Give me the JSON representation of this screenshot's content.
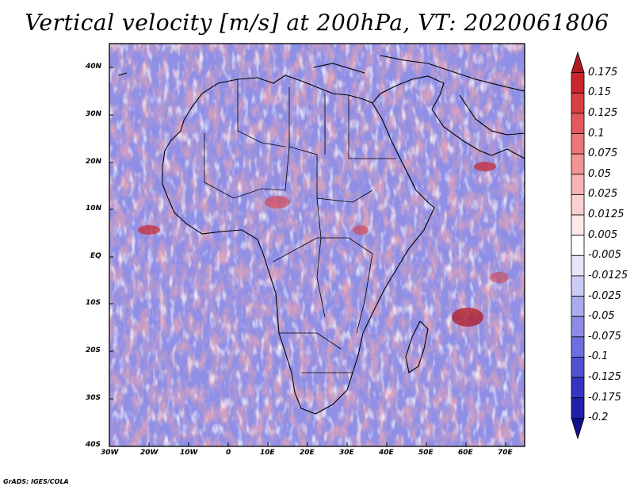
{
  "title": "Vertical velocity [m/s] at 200hPa, VT: 2020061806",
  "credit": "GrADS: IGES/COLA",
  "axes": {
    "lat_labels": [
      "40N",
      "30N",
      "20N",
      "10N",
      "EQ",
      "10S",
      "20S",
      "30S",
      "40S"
    ],
    "lon_labels": [
      "30W",
      "20W",
      "10W",
      "0",
      "10E",
      "20E",
      "30E",
      "40E",
      "50E",
      "60E",
      "70E"
    ]
  },
  "colorbar": {
    "labels": [
      "0.175",
      "0.15",
      "0.125",
      "0.1",
      "0.075",
      "0.05",
      "0.025",
      "0.0125",
      "0.005",
      "-0.005",
      "-0.0125",
      "-0.025",
      "-0.05",
      "-0.075",
      "-0.1",
      "-0.125",
      "-0.175",
      "-0.2"
    ],
    "colors": [
      "#b01a22",
      "#c8262c",
      "#d83e42",
      "#e3595b",
      "#ec7676",
      "#f29494",
      "#f7b2b2",
      "#fbd0d0",
      "#fde8e8",
      "#ffffff",
      "#e6e6fb",
      "#cbcbf6",
      "#ababef",
      "#8c8ce8",
      "#6e6ee0",
      "#5050d4",
      "#3434c4",
      "#1f1fae",
      "#10108e"
    ]
  },
  "chart_data": {
    "type": "heatmap",
    "title": "Vertical velocity [m/s] at 200hPa, VT: 2020061806",
    "variable": "Vertical velocity",
    "units": "m/s",
    "level": "200hPa",
    "valid_time": "2020061806",
    "lon_range": [
      -30,
      77
    ],
    "lat_range": [
      -40,
      45
    ],
    "contour_levels": [
      -0.2,
      -0.175,
      -0.125,
      -0.1,
      -0.075,
      -0.05,
      -0.025,
      -0.0125,
      -0.005,
      0.005,
      0.0125,
      0.025,
      0.05,
      0.075,
      0.1,
      0.125,
      0.15,
      0.175
    ]
  }
}
